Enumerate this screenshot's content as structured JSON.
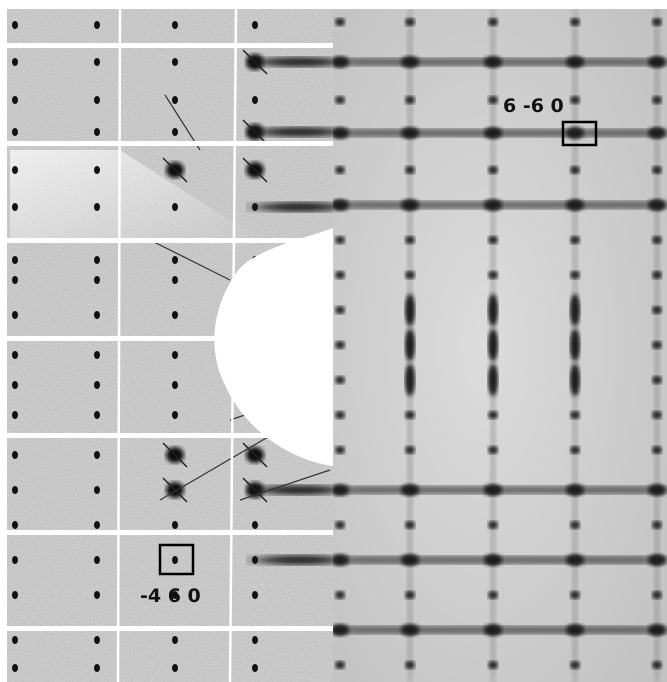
{
  "annotations": {
    "right_reflection": "6 -6 0",
    "left_reflection": "-4 6 0"
  }
}
